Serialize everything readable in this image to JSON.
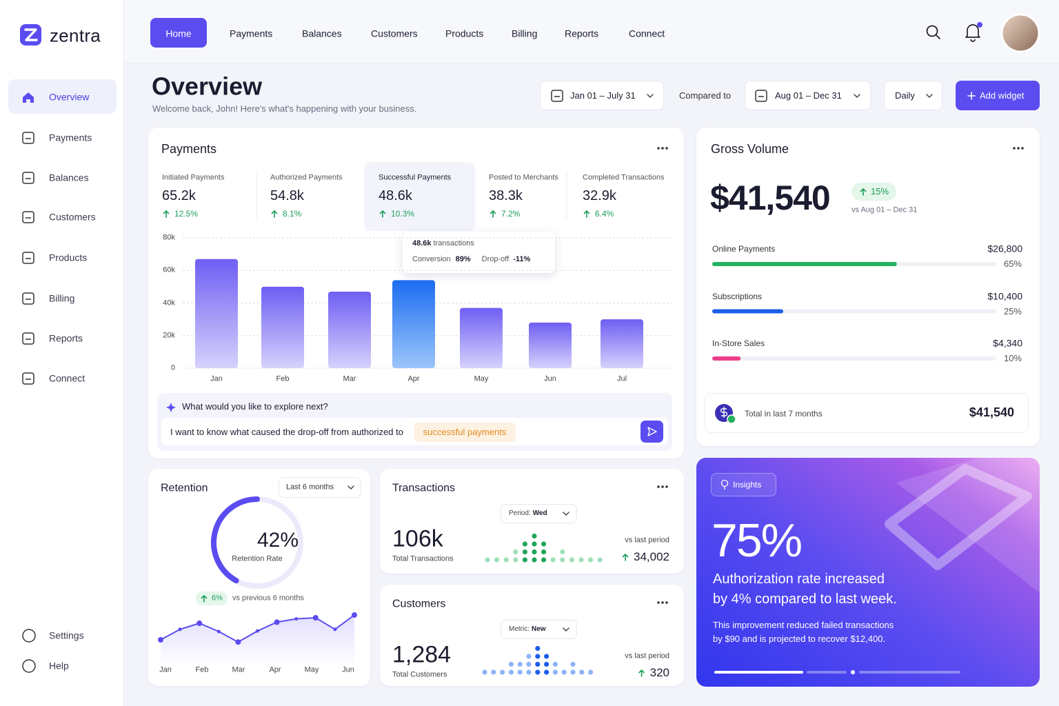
{
  "brand": {
    "name": "zentra"
  },
  "top_nav": [
    "Home",
    "Payments",
    "Balances",
    "Customers",
    "Products",
    "Billing",
    "Reports",
    "Connect"
  ],
  "sidebar": {
    "items": [
      "Overview",
      "Payments",
      "Balances",
      "Customers",
      "Products",
      "Billing",
      "Reports",
      "Connect"
    ],
    "footer": [
      "Settings",
      "Help"
    ]
  },
  "header": {
    "title": "Overview",
    "subtitle": "Welcome back, John! Here's what's happening with your business."
  },
  "filters": {
    "date_range": "Jan 01 – July 31",
    "compared_label": "Compared to",
    "compare_range": "Aug 01 – Dec 31",
    "granularity": "Daily",
    "add_button": "Add widget"
  },
  "payments": {
    "title": "Payments",
    "kpis": [
      {
        "label": "Initiated Payments",
        "value": "65.2k",
        "change": "12.5%"
      },
      {
        "label": "Authorized Payments",
        "value": "54.8k",
        "change": "8.1%"
      },
      {
        "label": "Successful Payments",
        "value": "48.6k",
        "change": "10.3%"
      },
      {
        "label": "Posted to Merchants",
        "value": "38.3k",
        "change": "7.2%"
      },
      {
        "label": "Completed Transactions",
        "value": "32.9k",
        "change": "6.4%"
      }
    ],
    "chart": {
      "type": "bar",
      "categories": [
        "Jan",
        "Feb",
        "Mar",
        "Apr",
        "May",
        "Jun",
        "Jul"
      ],
      "values": [
        67000,
        50000,
        47000,
        54000,
        37000,
        28000,
        30000
      ],
      "ylim": [
        0,
        80000
      ],
      "yticks": [
        0,
        {
          "value": 20000,
          "label": "20k"
        },
        {
          "value": 40000,
          "label": "40k"
        },
        {
          "value": 60000,
          "label": "60k"
        },
        {
          "value": 80000,
          "label": "80k"
        }
      ],
      "color": "#6f5ef3",
      "highlight": 3,
      "highlight_color": "#1c6cf0",
      "grid": true
    },
    "tooltip": {
      "value": "48.6k",
      "unit": "transactions",
      "conversion_label": "Conversion",
      "conversion": "89%",
      "dropoff_label": "Drop-off",
      "dropoff": "-11%"
    },
    "prompt": {
      "question": "What would you like to explore next?",
      "input": "I want to know what caused the drop-off from authorized to",
      "suggestion": "successful payments"
    }
  },
  "gross_volume": {
    "title": "Gross Volume",
    "value": "$41,540",
    "change": "15%",
    "comparison": "vs Aug 01 – Dec 31",
    "breakdown": [
      {
        "label": "Online Payments",
        "amount": "$26,800",
        "share": 65,
        "share_label": "65%",
        "color": "#22b35e"
      },
      {
        "label": "Subscriptions",
        "amount": "$10,400",
        "share": 25,
        "share_label": "25%",
        "color": "#1d5ee8"
      },
      {
        "label": "In-Store Sales",
        "amount": "$4,340",
        "share": 10,
        "share_label": "10%",
        "color": "#ec3e8a"
      }
    ],
    "total_label": "Total in last 7 months",
    "total": "$41,540"
  },
  "retention": {
    "title": "Retention",
    "period": "Last 6 months",
    "rate": 42,
    "rate_label": "42%",
    "rate_caption": "Retention Rate",
    "change": "6%",
    "comparison": "vs previous 6 months",
    "trend": {
      "type": "line",
      "month_labels": [
        "Jan",
        "Feb",
        "Mar",
        "Apr",
        "May",
        "Jun"
      ],
      "values": [
        40,
        59,
        70,
        55,
        36,
        56,
        72,
        78,
        80,
        59,
        85
      ],
      "ylim": [
        0,
        100
      ],
      "color": "#5b4cf0"
    }
  },
  "transactions": {
    "title": "Transactions",
    "filter_label": "Period:",
    "filter_value": "Wed",
    "value": "106k",
    "caption": "Total Transactions",
    "comparison": "vs last period",
    "delta": "34,002",
    "dots": {
      "values": [
        1,
        1,
        1,
        2,
        3,
        4,
        3,
        1,
        2,
        1,
        1,
        1,
        1
      ],
      "color": "#9fdfb8",
      "highlight": [
        4,
        5,
        6
      ],
      "highlight_color": "#1fa55a"
    }
  },
  "customers": {
    "title": "Customers",
    "filter_label": "Metric:",
    "filter_value": "New",
    "value": "1,284",
    "caption": "Total Customers",
    "comparison": "vs last period",
    "delta": "320",
    "dots": {
      "values": [
        1,
        1,
        1,
        2,
        2,
        3,
        4,
        3,
        2,
        1,
        2,
        1,
        1
      ],
      "color": "#8fb3f7",
      "highlight": [
        6,
        7
      ],
      "highlight_color": "#1d5ee8"
    }
  },
  "insights": {
    "badge": "Insights",
    "value": "75%",
    "headline": [
      "Authorization rate increased",
      "by 4% compared to last week."
    ],
    "body": [
      "This improvement reduced failed transactions",
      "by $90 and is projected to recover $12,400."
    ]
  }
}
